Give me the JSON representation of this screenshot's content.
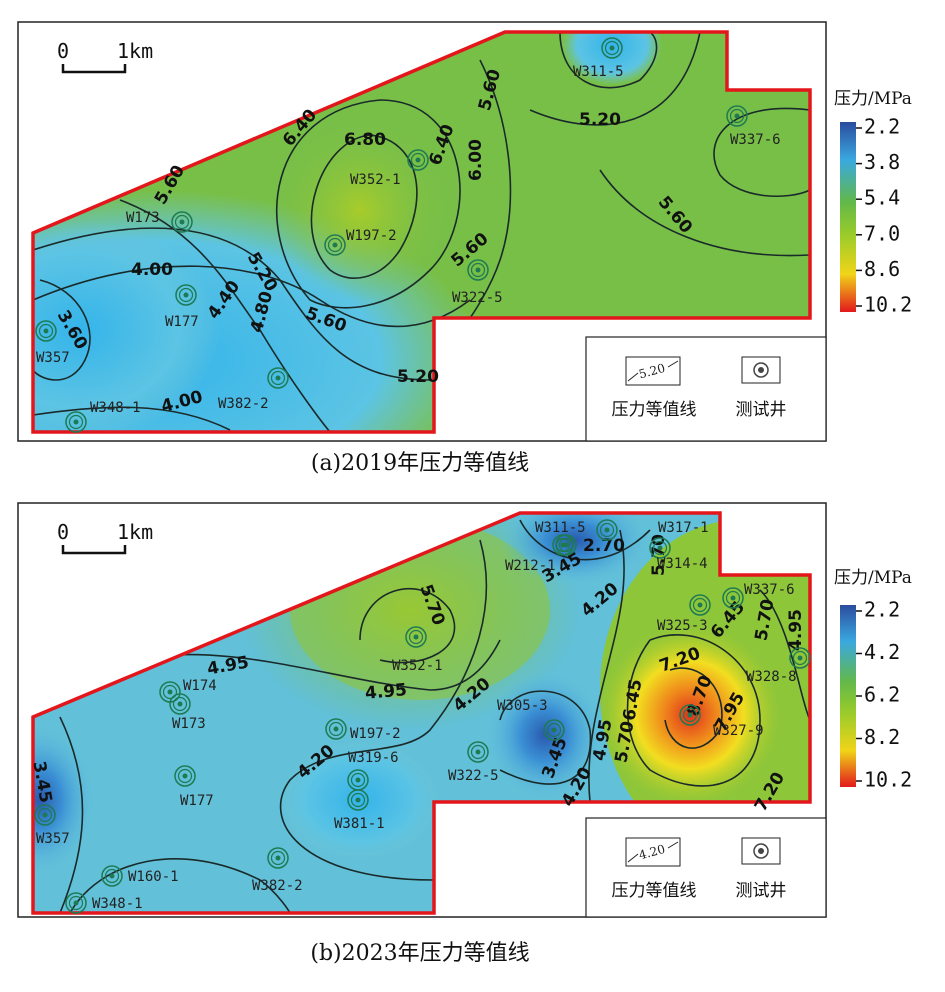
{
  "panels": [
    {
      "caption": "(a)2019年压力等值线",
      "scale": {
        "start": "0",
        "end": "1km"
      },
      "colorbar": {
        "title": "压力/MPa",
        "ticks": [
          "2.2",
          "3.8",
          "5.4",
          "7.0",
          "8.6",
          "10.2"
        ]
      },
      "legend": {
        "contour_sample": "5.20",
        "contour_name": "压力等值线",
        "well_name": "测试井"
      },
      "wells": [
        "W311-5",
        "W337-6",
        "W352-1",
        "W173",
        "W197-2",
        "W177",
        "W322-5",
        "W357",
        "W382-2",
        "W348-1"
      ],
      "contour_labels": [
        "6.40",
        "6.80",
        "6.40",
        "6.00",
        "5.60",
        "5.20",
        "5.60",
        "5.60",
        "4.00",
        "3.60",
        "5.20",
        "4.80",
        "4.40",
        "5.60",
        "5.60",
        "4.00",
        "5.20"
      ]
    },
    {
      "caption": "(b)2023年压力等值线",
      "scale": {
        "start": "0",
        "end": "1km"
      },
      "colorbar": {
        "title": "压力/MPa",
        "ticks": [
          "2.2",
          "4.2",
          "6.2",
          "8.2",
          "10.2"
        ]
      },
      "legend": {
        "contour_sample": "4.20",
        "contour_name": "压力等值线",
        "well_name": "测试井"
      },
      "wells": [
        "W311-5",
        "W317-1",
        "W212-1",
        "W314-4",
        "W337-6",
        "W325-3",
        "W352-1",
        "W328-8",
        "W174",
        "W173",
        "W197-2",
        "W305-3",
        "W327-9",
        "W319-6",
        "W381-1",
        "W322-5",
        "W177",
        "W357",
        "W160-1",
        "W382-2",
        "W348-1"
      ],
      "contour_labels": [
        "5.70",
        "2.70",
        "3.45",
        "4.20",
        "5.70",
        "6.45",
        "5.70",
        "4.95",
        "4.95",
        "4.95",
        "4.20",
        "4.20",
        "3.45",
        "4.20",
        "4.95",
        "6.45",
        "5.70",
        "7.20",
        "7.95",
        "8.70",
        "7.20",
        "3.45"
      ]
    }
  ]
}
